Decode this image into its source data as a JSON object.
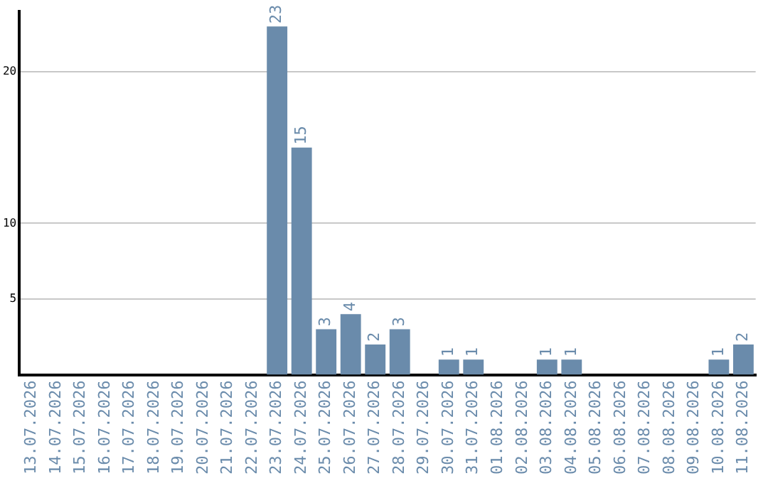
{
  "chart_data": {
    "type": "bar",
    "categories": [
      "13.07.2026",
      "14.07.2026",
      "15.07.2026",
      "16.07.2026",
      "17.07.2026",
      "18.07.2026",
      "19.07.2026",
      "20.07.2026",
      "21.07.2026",
      "22.07.2026",
      "23.07.2026",
      "24.07.2026",
      "25.07.2026",
      "26.07.2026",
      "27.07.2026",
      "28.07.2026",
      "29.07.2026",
      "30.07.2026",
      "31.07.2026",
      "01.08.2026",
      "02.08.2026",
      "03.08.2026",
      "04.08.2026",
      "05.08.2026",
      "06.08.2026",
      "07.08.2026",
      "08.08.2026",
      "09.08.2026",
      "10.08.2026",
      "11.08.2026"
    ],
    "values": [
      0,
      0,
      0,
      0,
      0,
      0,
      0,
      0,
      0,
      0,
      23,
      15,
      3,
      4,
      2,
      3,
      0,
      1,
      1,
      0,
      0,
      1,
      1,
      0,
      0,
      0,
      0,
      0,
      1,
      2
    ],
    "value_labels": [
      null,
      null,
      null,
      null,
      null,
      null,
      null,
      null,
      null,
      null,
      "23",
      "15",
      "3",
      "4",
      "2",
      "3",
      null,
      "1",
      "1",
      null,
      null,
      "1",
      "1",
      null,
      null,
      null,
      null,
      null,
      "1",
      "2"
    ],
    "color": "#6a8bab",
    "ylim": [
      0,
      24
    ],
    "yticks": [
      5,
      10,
      20
    ],
    "grid": "y",
    "legend": false
  }
}
